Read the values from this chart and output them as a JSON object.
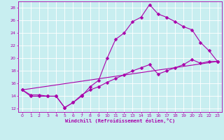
{
  "xlabel": "Windchill (Refroidissement éolien,°C)",
  "bg_color": "#c8eef0",
  "line_color": "#aa00aa",
  "grid_color": "#ffffff",
  "xlim": [
    -0.5,
    23.5
  ],
  "ylim": [
    11.5,
    29.0
  ],
  "xticks": [
    0,
    1,
    2,
    3,
    4,
    5,
    6,
    7,
    8,
    9,
    10,
    11,
    12,
    13,
    14,
    15,
    16,
    17,
    18,
    19,
    20,
    21,
    22,
    23
  ],
  "yticks": [
    12,
    14,
    16,
    18,
    20,
    22,
    24,
    26,
    28
  ],
  "line1_x": [
    0,
    1,
    2,
    3,
    4,
    5,
    6,
    7,
    8,
    9,
    10,
    11,
    12,
    13,
    14,
    15,
    16,
    17,
    18,
    19,
    20,
    21,
    22,
    23
  ],
  "line1_y": [
    15,
    14,
    14,
    14,
    14,
    12.2,
    13,
    14,
    15.5,
    16.5,
    20,
    23,
    24,
    25.8,
    26.5,
    28.5,
    27,
    26.5,
    25.8,
    25,
    24.5,
    22.5,
    21.2,
    19.5
  ],
  "line2_x": [
    0,
    1,
    2,
    3,
    4,
    5,
    6,
    7,
    8,
    9,
    10,
    11,
    12,
    13,
    14,
    15,
    16,
    17,
    18,
    19,
    20,
    21,
    22,
    23
  ],
  "line2_y": [
    15,
    14.2,
    14.2,
    14,
    14,
    12.2,
    13,
    14.2,
    15,
    15.5,
    16.2,
    16.8,
    17.4,
    18,
    18.5,
    19,
    17.5,
    18,
    18.5,
    19,
    19.8,
    19.2,
    19.5,
    19.5
  ],
  "line3_x": [
    0,
    23
  ],
  "line3_y": [
    15,
    19.5
  ]
}
